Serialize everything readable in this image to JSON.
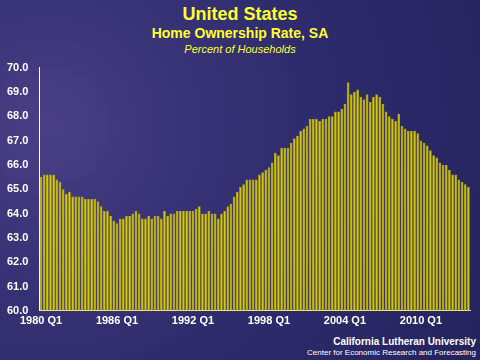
{
  "chart_data": {
    "type": "bar",
    "title": "United States",
    "subtitle": "Home Ownership Rate, SA",
    "y_label": "Percent of Households",
    "annotations": [
      "California Lutheran",
      "University",
      "Center for Economic",
      "Research and Forecasting"
    ],
    "categories": [
      "1980 Q1",
      null,
      null,
      null,
      null,
      null,
      null,
      null,
      null,
      null,
      null,
      null,
      null,
      null,
      null,
      null,
      null,
      null,
      null,
      null,
      null,
      null,
      null,
      null,
      "1986 Q1",
      null,
      null,
      null,
      null,
      null,
      null,
      null,
      null,
      null,
      null,
      null,
      null,
      null,
      null,
      null,
      null,
      null,
      null,
      null,
      null,
      null,
      null,
      null,
      "1992 Q1",
      null,
      null,
      null,
      null,
      null,
      null,
      null,
      null,
      null,
      null,
      null,
      null,
      null,
      null,
      null,
      null,
      null,
      null,
      null,
      null,
      null,
      null,
      null,
      "1998 Q1",
      null,
      null,
      null,
      null,
      null,
      null,
      null,
      null,
      null,
      null,
      null,
      null,
      null,
      null,
      null,
      null,
      null,
      null,
      null,
      null,
      null,
      null,
      null,
      "2004 Q1",
      null,
      null,
      null,
      null,
      null,
      null,
      null,
      null,
      null,
      null,
      null,
      null,
      null,
      null,
      null,
      null,
      null,
      null,
      null,
      null,
      null,
      null,
      null,
      "2010 Q1",
      null,
      null,
      null,
      null,
      null,
      null,
      null,
      null,
      null,
      null,
      null,
      null,
      null,
      null,
      null
    ],
    "values": [
      65.5,
      65.6,
      65.6,
      65.6,
      65.6,
      65.4,
      65.3,
      65.0,
      64.8,
      64.9,
      64.7,
      64.7,
      64.7,
      64.7,
      64.6,
      64.6,
      64.6,
      64.6,
      64.5,
      64.3,
      64.1,
      64.1,
      63.9,
      63.7,
      63.6,
      63.8,
      63.8,
      63.9,
      63.9,
      64.0,
      64.1,
      64.0,
      63.8,
      63.8,
      63.9,
      63.8,
      63.9,
      63.9,
      63.8,
      64.1,
      63.9,
      64.0,
      64.0,
      64.1,
      64.1,
      64.1,
      64.1,
      64.1,
      64.1,
      64.2,
      64.3,
      64.0,
      64.0,
      64.1,
      64.0,
      64.0,
      63.8,
      64.0,
      64.1,
      64.3,
      64.4,
      64.7,
      64.9,
      65.1,
      65.2,
      65.4,
      65.4,
      65.4,
      65.4,
      65.6,
      65.7,
      65.8,
      65.9,
      66.1,
      66.5,
      66.4,
      66.7,
      66.7,
      66.7,
      66.9,
      67.1,
      67.2,
      67.4,
      67.5,
      67.6,
      67.9,
      67.9,
      67.9,
      67.8,
      67.9,
      67.9,
      68.0,
      68.0,
      68.2,
      68.2,
      68.3,
      68.5,
      69.4,
      68.9,
      69.0,
      69.1,
      68.8,
      68.7,
      68.9,
      68.6,
      68.8,
      68.9,
      68.8,
      68.5,
      68.2,
      68.0,
      67.9,
      67.8,
      68.1,
      67.6,
      67.5,
      67.4,
      67.4,
      67.4,
      67.3,
      67.0,
      66.9,
      66.8,
      66.6,
      66.4,
      66.3,
      66.1,
      66.0,
      66.0,
      65.8,
      65.6,
      65.6,
      65.4,
      65.3,
      65.2,
      65.1
    ],
    "color": "#ffff00",
    "ylim": [
      60,
      70
    ],
    "yticks": [
      {
        "value": 60,
        "label": "60.0"
      },
      {
        "value": 61,
        "label": "61.0"
      },
      {
        "value": 62,
        "label": "62.0"
      },
      {
        "value": 63,
        "label": "63.0"
      },
      {
        "value": 64,
        "label": "64.0"
      },
      {
        "value": 65,
        "label": "65.0"
      },
      {
        "value": 66,
        "label": "66.0"
      },
      {
        "value": 67,
        "label": "67.0"
      },
      {
        "value": 68,
        "label": "68.0"
      },
      {
        "value": 69,
        "label": "69.0"
      },
      {
        "value": 70,
        "label": "70.0"
      }
    ],
    "grid": false
  }
}
